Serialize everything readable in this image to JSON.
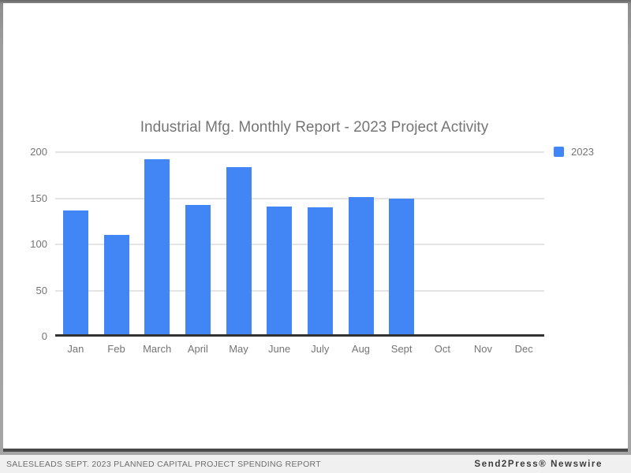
{
  "page": {
    "footer": {
      "left_text": "SALESLEADS SEPT. 2023 PLANNED CAPITAL PROJECT SPENDING REPORT",
      "right_text": "Send2Press® Newswire"
    }
  },
  "chart_data": {
    "type": "bar",
    "title": "Industrial Mfg. Monthly Report - 2023 Project Activity",
    "categories": [
      "Jan",
      "Feb",
      "March",
      "April",
      "May",
      "June",
      "July",
      "Aug",
      "Sept",
      "Oct",
      "Nov",
      "Dec"
    ],
    "series": [
      {
        "name": "2023",
        "color": "#4285f4",
        "values": [
          137,
          110,
          192,
          143,
          184,
          141,
          140,
          151,
          150,
          null,
          null,
          null
        ]
      }
    ],
    "xlabel": "",
    "ylabel": "",
    "ylim": [
      0,
      200
    ],
    "yticks": [
      0,
      50,
      100,
      150,
      200
    ],
    "grid": true,
    "legend_position": "right",
    "colors": {
      "bar": "#4285f4",
      "gridline": "#e4e4e4",
      "baseline": "#333333",
      "axis_text": "#757575",
      "title_text": "#757575",
      "footer_bg": "#f0f0f0"
    }
  }
}
